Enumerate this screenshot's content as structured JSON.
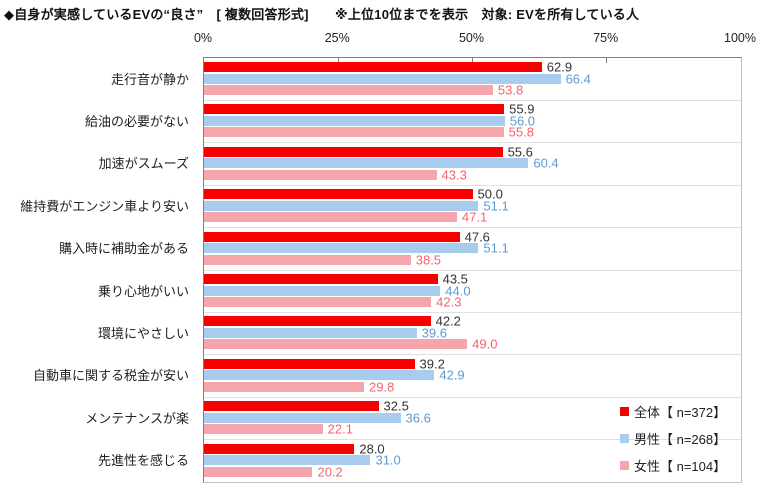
{
  "title": "◆自身が実感しているEVの“良さ”　[ 複数回答形式]　　※上位10位までを表示　対象: EVを所有している人",
  "chart_data": {
    "type": "bar",
    "orientation": "horizontal",
    "title": "自身が実感しているEVの“良さ”",
    "xlabel": "",
    "ylabel": "",
    "xlim": [
      0,
      100
    ],
    "x_ticks": [
      {
        "label": "0%",
        "value": 0
      },
      {
        "label": "25%",
        "value": 25
      },
      {
        "label": "50%",
        "value": 50
      },
      {
        "label": "75%",
        "value": 75
      },
      {
        "label": "100%",
        "value": 100
      }
    ],
    "grid": "horizontal-group-separators-only",
    "legend_position": "inside-bottom-right",
    "categories": [
      "走行音が静か",
      "給油の必要がない",
      "加速がスムーズ",
      "維持費がエンジン車より安い",
      "購入時に補助金がある",
      "乗り心地がいい",
      "環境にやさしい",
      "自動車に関する税金が安い",
      "メンテナンスが楽",
      "先進性を感じる"
    ],
    "series": [
      {
        "name": "全体【 n=372】",
        "bar_color": "#f70000",
        "label_color": "#333333",
        "values": [
          62.9,
          55.9,
          55.6,
          50.0,
          47.6,
          43.5,
          42.2,
          39.2,
          32.5,
          28.0
        ]
      },
      {
        "name": "男性【 n=268】",
        "bar_color": "#a8ccee",
        "label_color": "#5b9bd5",
        "values": [
          66.4,
          56.0,
          60.4,
          51.1,
          51.1,
          44.0,
          39.6,
          42.9,
          36.6,
          31.0
        ]
      },
      {
        "name": "女性【 n=104】",
        "bar_color": "#f5a6ac",
        "label_color": "#f4626f",
        "values": [
          53.8,
          55.8,
          43.3,
          47.1,
          38.5,
          42.3,
          49.0,
          29.8,
          22.1,
          20.2
        ]
      }
    ]
  }
}
